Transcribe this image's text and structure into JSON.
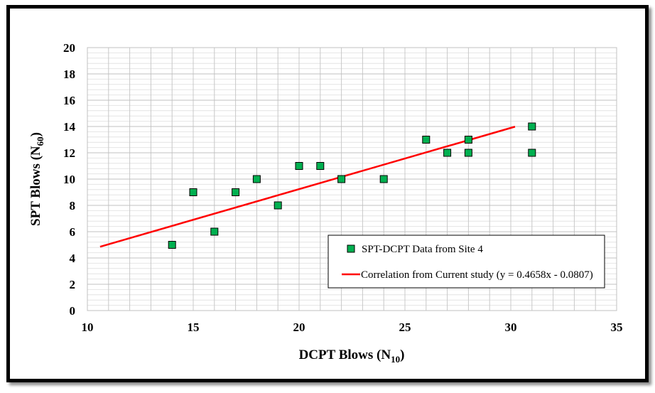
{
  "chart_data": {
    "type": "scatter",
    "title": "",
    "xlabel": "DCPT Blows (N",
    "xlabel_sub": "10",
    "xlabel_end": ")",
    "ylabel": "SPT Blows (N",
    "ylabel_sub": "60",
    "ylabel_end": ")",
    "xlim": [
      10,
      35
    ],
    "ylim": [
      0,
      20
    ],
    "xticks": [
      10,
      15,
      20,
      25,
      30,
      35
    ],
    "yticks": [
      0,
      2,
      4,
      6,
      8,
      10,
      12,
      14,
      16,
      18,
      20
    ],
    "grid": true,
    "legend_position": "bottom-right",
    "series": [
      {
        "name": "SPT-DCPT Data from Site 4",
        "kind": "scatter",
        "color": "#00B050",
        "points": [
          [
            14,
            5
          ],
          [
            15,
            9
          ],
          [
            16,
            6
          ],
          [
            17,
            9
          ],
          [
            18,
            10
          ],
          [
            19,
            8
          ],
          [
            20,
            11
          ],
          [
            21,
            11
          ],
          [
            22,
            10
          ],
          [
            24,
            10
          ],
          [
            26,
            13
          ],
          [
            27,
            12
          ],
          [
            28,
            13
          ],
          [
            28,
            12
          ],
          [
            31,
            14
          ],
          [
            31,
            12
          ]
        ]
      },
      {
        "name": "Correlation from Current study (y = 0.4658x - 0.0807)",
        "kind": "line",
        "color": "#FF0000",
        "slope": 0.4658,
        "intercept": -0.0807,
        "x_range": [
          10.6,
          30.2
        ]
      }
    ]
  }
}
